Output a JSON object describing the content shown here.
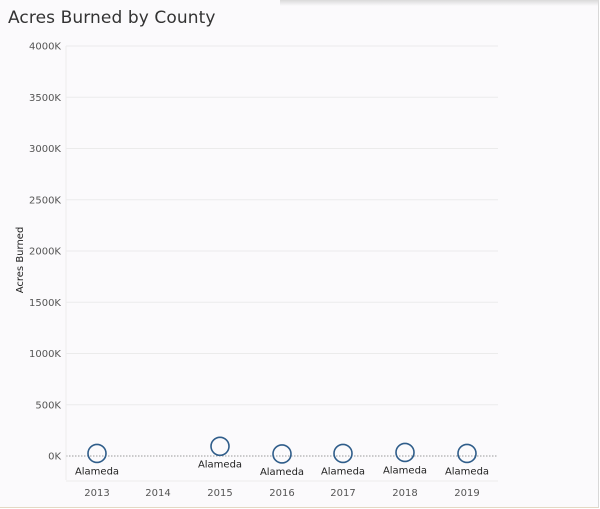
{
  "chart_data": {
    "type": "scatter",
    "title": "Acres Burned by County",
    "ylabel": "Acres Burned",
    "xlabel": "",
    "categories": [
      "2013",
      "2014",
      "2015",
      "2016",
      "2017",
      "2018",
      "2019"
    ],
    "ylim": [
      0,
      4000000
    ],
    "yticks": [
      0,
      500000,
      1000000,
      1500000,
      2000000,
      2500000,
      3000000,
      3500000,
      4000000
    ],
    "ytick_labels": [
      "0K",
      "500K",
      "1000K",
      "1500K",
      "2000K",
      "2500K",
      "3000K",
      "3500K",
      "4000K"
    ],
    "grid": true,
    "series": [
      {
        "points": [
          {
            "x": "2013",
            "y": 15000,
            "label": "Alameda"
          },
          {
            "x": "2015",
            "y": 85000,
            "label": "Alameda"
          },
          {
            "x": "2016",
            "y": 10000,
            "label": "Alameda"
          },
          {
            "x": "2017",
            "y": 15000,
            "label": "Alameda"
          },
          {
            "x": "2018",
            "y": 25000,
            "label": "Alameda"
          },
          {
            "x": "2019",
            "y": 15000,
            "label": "Alameda"
          }
        ]
      }
    ],
    "colors": {
      "mark": "#2f5d8a"
    }
  }
}
